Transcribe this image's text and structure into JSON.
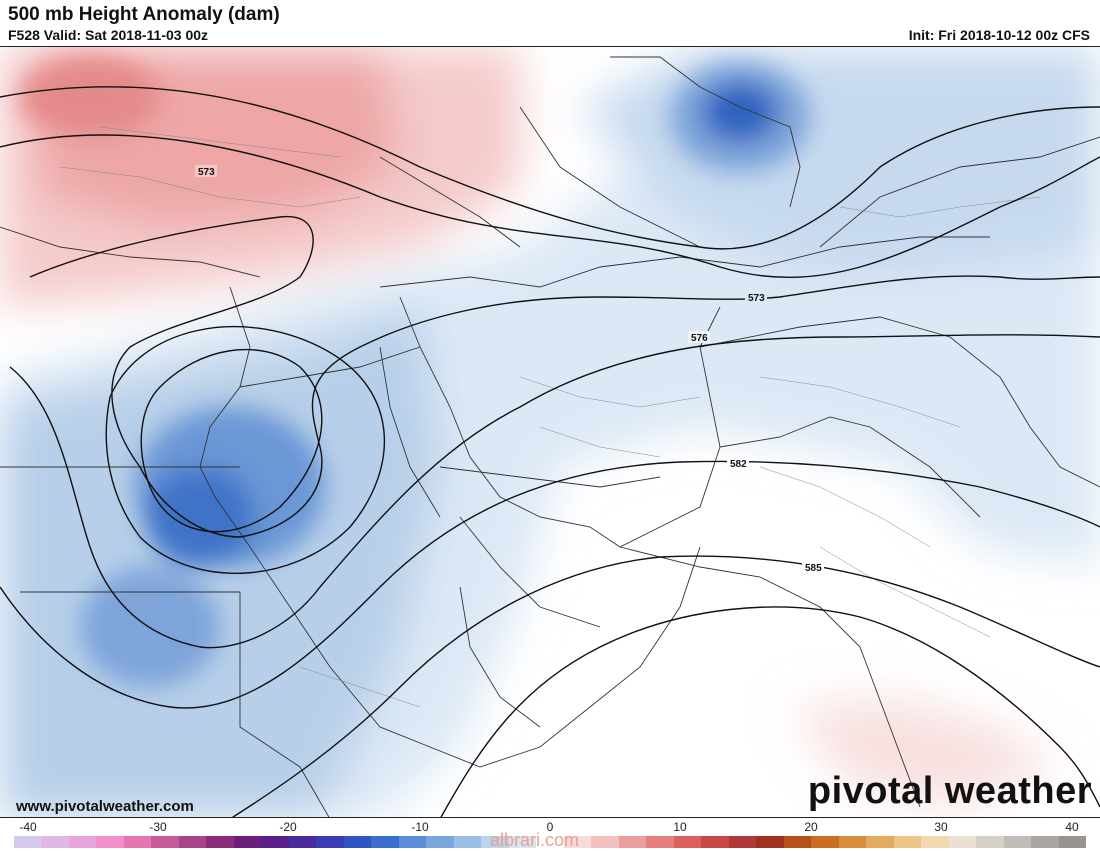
{
  "header": {
    "title": "500 mb Height Anomaly (dam)",
    "subtitle": "F528 Valid: Sat 2018-11-03 00z",
    "init": "Init: Fri 2018-10-12 00z CFS"
  },
  "branding": {
    "logo_text": "pivotal weather",
    "site_url": "www.pivotalweather.com",
    "watermark": "albrari.com"
  },
  "contours": {
    "labels": [
      "573",
      "573",
      "576",
      "582",
      "585"
    ]
  },
  "colorbar": {
    "ticks": [
      "-40",
      "-30",
      "-20",
      "-10",
      "0",
      "10",
      "20",
      "30",
      "40"
    ],
    "colors": [
      "#d6c8ee",
      "#e0b6e6",
      "#eaa4dc",
      "#f08fc8",
      "#e776b0",
      "#c85a98",
      "#a84488",
      "#8a2c7a",
      "#6e1d7c",
      "#5a1e8a",
      "#4a2b9e",
      "#3a3db2",
      "#2f55c4",
      "#3a6fd0",
      "#5a8cd8",
      "#7aa6de",
      "#9cbfe4",
      "#bcd3ec",
      "#d8e6f4",
      "#ffffff",
      "#f8dcdc",
      "#f2c0c0",
      "#ec9e9e",
      "#e67e7e",
      "#dc6060",
      "#c84848",
      "#b03838",
      "#a03020",
      "#b8501c",
      "#cc6e22",
      "#d88c3c",
      "#e4aa5e",
      "#ecc488",
      "#f0d8b0",
      "#e8e0d0",
      "#d6d0c8",
      "#c2bcb6",
      "#aca6a2",
      "#9a9490"
    ]
  }
}
